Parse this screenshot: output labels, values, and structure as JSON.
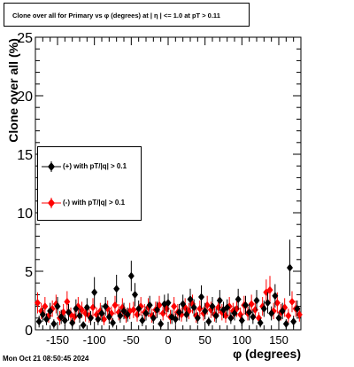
{
  "chart_data": {
    "type": "scatter",
    "title": "Clone  over all for Primary vs φ (degrees) at |  η | <= 1.0 at pT > 0.11",
    "xlabel": "φ (degrees)",
    "ylabel": "Clone  over all (%)",
    "xlim": [
      -180,
      180
    ],
    "ylim": [
      0,
      25
    ],
    "x_ticks": [
      -150,
      -100,
      -50,
      0,
      50,
      100,
      150
    ],
    "y_ticks": [
      0,
      5,
      10,
      15,
      20,
      25
    ],
    "grid": false,
    "legend_position": "middle-left",
    "series": [
      {
        "name": "(+) with pT/|q| > 0.1",
        "color": "#000000",
        "marker": "diamond",
        "points": [
          [
            -175,
            0.7,
            0.5
          ],
          [
            -170,
            1.3,
            0.6
          ],
          [
            -165,
            0.9,
            0.5
          ],
          [
            -160,
            1.6,
            0.7
          ],
          [
            -155,
            0.5,
            0.4
          ],
          [
            -150,
            2.0,
            0.8
          ],
          [
            -145,
            1.1,
            0.6
          ],
          [
            -140,
            0.8,
            0.5
          ],
          [
            -135,
            1.5,
            0.7
          ],
          [
            -130,
            0.6,
            0.4
          ],
          [
            -125,
            1.8,
            0.8
          ],
          [
            -120,
            1.2,
            0.6
          ],
          [
            -115,
            0.4,
            0.3
          ],
          [
            -110,
            1.9,
            0.8
          ],
          [
            -105,
            1.0,
            0.6
          ],
          [
            -100,
            3.2,
            1.3
          ],
          [
            -95,
            0.9,
            0.5
          ],
          [
            -90,
            1.4,
            0.7
          ],
          [
            -85,
            2.0,
            0.8
          ],
          [
            -80,
            1.1,
            0.6
          ],
          [
            -75,
            0.6,
            0.4
          ],
          [
            -70,
            3.5,
            1.2
          ],
          [
            -65,
            1.2,
            0.6
          ],
          [
            -60,
            1.6,
            0.7
          ],
          [
            -55,
            1.3,
            0.6
          ],
          [
            -50,
            4.6,
            1.3
          ],
          [
            -45,
            3.0,
            1.0
          ],
          [
            -40,
            1.8,
            0.7
          ],
          [
            -35,
            0.8,
            0.5
          ],
          [
            -30,
            1.4,
            0.6
          ],
          [
            -25,
            2.1,
            0.8
          ],
          [
            -20,
            1.0,
            0.5
          ],
          [
            -15,
            1.7,
            0.7
          ],
          [
            -10,
            0.5,
            0.4
          ],
          [
            -5,
            2.2,
            0.8
          ],
          [
            0,
            2.3,
            0.8
          ],
          [
            5,
            1.1,
            0.6
          ],
          [
            10,
            0.9,
            0.5
          ],
          [
            15,
            1.5,
            0.7
          ],
          [
            20,
            2.2,
            0.8
          ],
          [
            25,
            1.3,
            0.6
          ],
          [
            30,
            2.6,
            0.9
          ],
          [
            35,
            1.9,
            0.7
          ],
          [
            40,
            1.0,
            0.5
          ],
          [
            45,
            2.8,
            1.0
          ],
          [
            50,
            1.6,
            0.7
          ],
          [
            55,
            0.7,
            0.4
          ],
          [
            60,
            2.0,
            0.8
          ],
          [
            65,
            1.2,
            0.6
          ],
          [
            70,
            2.5,
            0.9
          ],
          [
            75,
            1.7,
            0.7
          ],
          [
            80,
            1.9,
            0.7
          ],
          [
            85,
            1.0,
            0.5
          ],
          [
            90,
            1.4,
            0.6
          ],
          [
            95,
            2.6,
            0.9
          ],
          [
            100,
            0.8,
            0.5
          ],
          [
            105,
            2.1,
            0.8
          ],
          [
            110,
            1.5,
            0.7
          ],
          [
            115,
            1.1,
            0.6
          ],
          [
            120,
            2.5,
            0.9
          ],
          [
            125,
            0.6,
            0.4
          ],
          [
            130,
            1.8,
            0.7
          ],
          [
            135,
            2.3,
            0.9
          ],
          [
            140,
            1.4,
            0.6
          ],
          [
            145,
            2.9,
            1.0
          ],
          [
            150,
            1.0,
            0.5
          ],
          [
            155,
            1.6,
            0.7
          ],
          [
            160,
            0.5,
            0.4
          ],
          [
            165,
            5.3,
            2.4
          ],
          [
            170,
            0.7,
            0.5
          ],
          [
            175,
            1.8,
            0.7
          ]
        ]
      },
      {
        "name": "(-) with pT/|q| > 0.1",
        "color": "#ff0000",
        "marker": "diamond",
        "points": [
          [
            -177,
            2.3,
            0.9
          ],
          [
            -172,
            1.6,
            0.7
          ],
          [
            -167,
            2.0,
            0.8
          ],
          [
            -162,
            1.2,
            0.6
          ],
          [
            -157,
            1.8,
            0.7
          ],
          [
            -152,
            2.2,
            0.8
          ],
          [
            -147,
            1.0,
            0.6
          ],
          [
            -142,
            1.5,
            0.7
          ],
          [
            -137,
            2.4,
            0.9
          ],
          [
            -132,
            1.3,
            0.6
          ],
          [
            -127,
            1.1,
            0.6
          ],
          [
            -122,
            2.0,
            0.8
          ],
          [
            -117,
            1.7,
            0.7
          ],
          [
            -112,
            1.4,
            0.7
          ],
          [
            -107,
            1.2,
            0.6
          ],
          [
            -102,
            1.9,
            0.8
          ],
          [
            -97,
            1.3,
            0.6
          ],
          [
            -92,
            1.6,
            0.7
          ],
          [
            -87,
            0.9,
            0.5
          ],
          [
            -82,
            1.8,
            0.7
          ],
          [
            -77,
            1.4,
            0.6
          ],
          [
            -72,
            2.1,
            0.8
          ],
          [
            -67,
            1.5,
            0.7
          ],
          [
            -62,
            1.9,
            0.8
          ],
          [
            -57,
            1.2,
            0.6
          ],
          [
            -52,
            1.6,
            0.7
          ],
          [
            -47,
            1.7,
            0.7
          ],
          [
            -42,
            1.3,
            0.6
          ],
          [
            -37,
            2.0,
            0.8
          ],
          [
            -32,
            1.5,
            0.7
          ],
          [
            -27,
            1.9,
            0.8
          ],
          [
            -22,
            1.2,
            0.6
          ],
          [
            -17,
            1.7,
            0.7
          ],
          [
            -12,
            2.1,
            0.8
          ],
          [
            -7,
            1.4,
            0.6
          ],
          [
            -2,
            1.8,
            0.7
          ],
          [
            3,
            1.1,
            0.6
          ],
          [
            8,
            2.0,
            0.8
          ],
          [
            13,
            1.5,
            0.7
          ],
          [
            18,
            1.3,
            0.6
          ],
          [
            23,
            1.9,
            0.8
          ],
          [
            28,
            1.6,
            0.7
          ],
          [
            33,
            2.2,
            0.8
          ],
          [
            38,
            1.2,
            0.6
          ],
          [
            43,
            1.8,
            0.7
          ],
          [
            48,
            1.4,
            0.6
          ],
          [
            53,
            2.1,
            0.8
          ],
          [
            58,
            1.7,
            0.7
          ],
          [
            63,
            1.3,
            0.6
          ],
          [
            68,
            1.9,
            0.8
          ],
          [
            73,
            1.5,
            0.7
          ],
          [
            78,
            1.2,
            0.6
          ],
          [
            83,
            2.0,
            0.8
          ],
          [
            88,
            1.6,
            0.7
          ],
          [
            93,
            1.8,
            0.7
          ],
          [
            98,
            1.3,
            0.6
          ],
          [
            103,
            2.1,
            0.8
          ],
          [
            108,
            1.4,
            0.6
          ],
          [
            113,
            2.2,
            0.8
          ],
          [
            118,
            1.7,
            0.7
          ],
          [
            123,
            1.0,
            0.5
          ],
          [
            128,
            2.0,
            0.8
          ],
          [
            133,
            3.2,
            1.1
          ],
          [
            138,
            3.4,
            1.2
          ],
          [
            143,
            1.6,
            0.7
          ],
          [
            148,
            2.3,
            0.9
          ],
          [
            153,
            1.5,
            0.7
          ],
          [
            158,
            1.9,
            0.8
          ],
          [
            163,
            1.2,
            0.6
          ],
          [
            168,
            2.4,
            0.9
          ],
          [
            173,
            1.8,
            0.7
          ],
          [
            178,
            1.3,
            0.6
          ]
        ]
      }
    ]
  },
  "footer": {
    "timestamp": "Mon Oct 21 08:50:45 2024"
  }
}
